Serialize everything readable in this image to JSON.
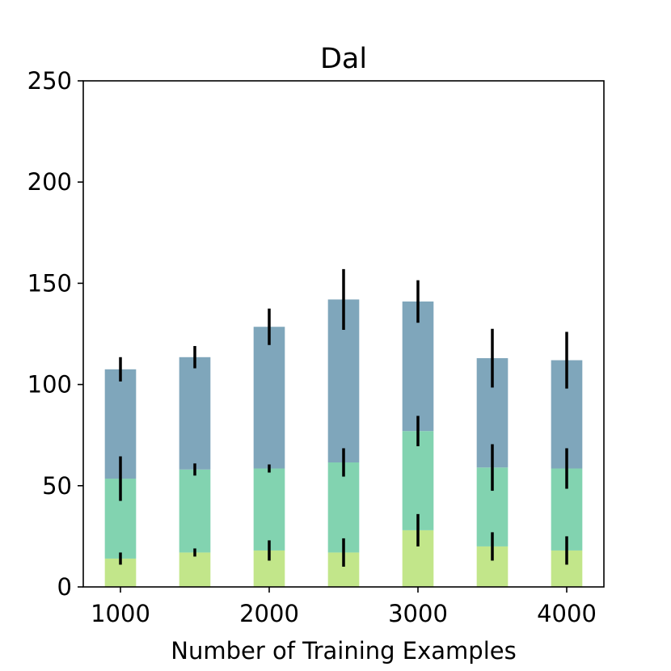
{
  "chart_data": {
    "type": "bar",
    "stacked": true,
    "title": "Dal",
    "xlabel": "Number of Training Examples",
    "ylabel": "",
    "x": [
      1000,
      1500,
      2000,
      2500,
      3000,
      3500,
      4000
    ],
    "x_ticks": [
      1000,
      2000,
      3000,
      4000
    ],
    "x_tick_labels": [
      "1000",
      "2000",
      "3000",
      "4000"
    ],
    "xlim": [
      750,
      4250
    ],
    "ylim": [
      0,
      250
    ],
    "y_ticks": [
      0,
      50,
      100,
      150,
      200,
      250
    ],
    "y_tick_labels": [
      "0",
      "50",
      "100",
      "150",
      "200",
      "250"
    ],
    "bar_width": 210,
    "grid": false,
    "legend": "none",
    "series": [
      {
        "color": "#c2e68a",
        "tops": [
          14,
          17,
          18,
          17,
          28,
          20,
          18
        ],
        "error": [
          3,
          2,
          5,
          7,
          8,
          7,
          7
        ]
      },
      {
        "color": "#82d3b0",
        "tops": [
          53.5,
          58,
          58.5,
          61.5,
          77,
          59,
          58.5
        ],
        "error": [
          11,
          3,
          2,
          7,
          7.5,
          11.5,
          10
        ]
      },
      {
        "color": "#7fa6bb",
        "tops": [
          107.5,
          113.5,
          128.5,
          142,
          141,
          113,
          112
        ],
        "error": [
          6,
          5.5,
          9,
          15,
          10.5,
          14.5,
          14
        ]
      }
    ]
  }
}
